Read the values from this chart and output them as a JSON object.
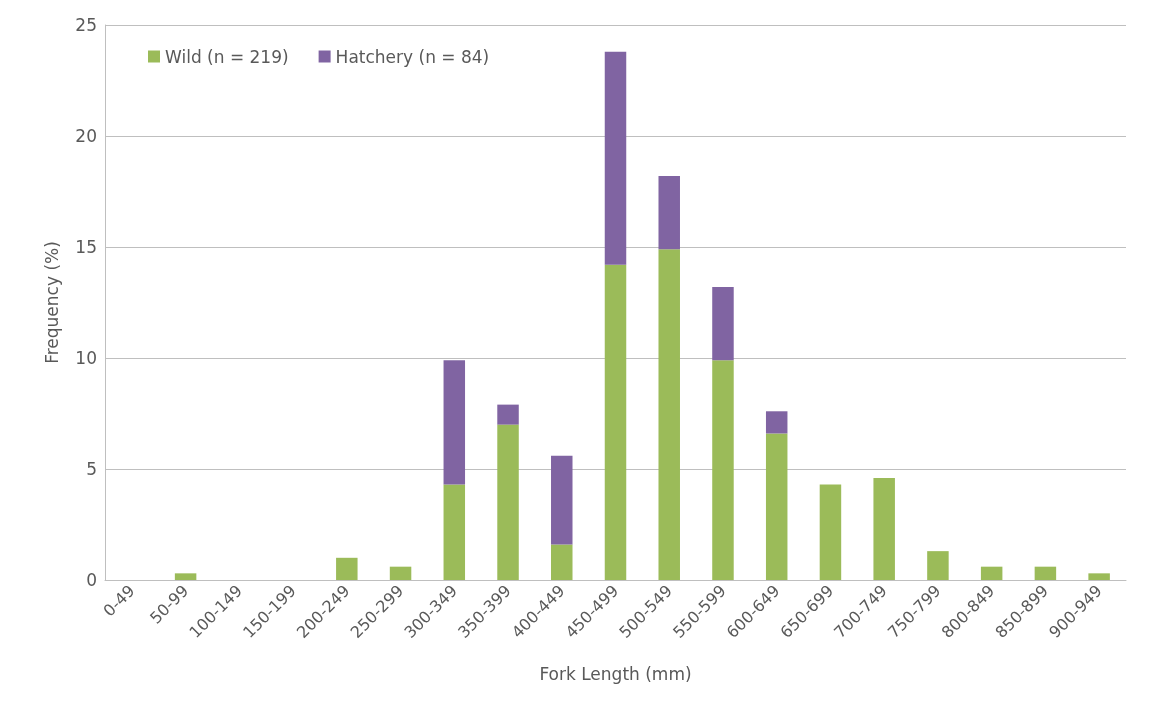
{
  "chart_data": {
    "type": "bar",
    "stacked": true,
    "xlabel": "Fork Length (mm)",
    "ylabel": "Frequency (%)",
    "categories": [
      "0-49",
      "50-99",
      "100-149",
      "150-199",
      "200-249",
      "250-299",
      "300-349",
      "350-399",
      "400-449",
      "450-499",
      "500-549",
      "550-599",
      "600-649",
      "650-699",
      "700-749",
      "750-799",
      "800-849",
      "850-899",
      "900-949"
    ],
    "series": [
      {
        "name": "Wild (n = 219)",
        "color": "#9bbb59",
        "values": [
          0,
          0.3,
          0,
          0,
          1.0,
          0.6,
          4.3,
          7.0,
          1.6,
          14.2,
          14.9,
          9.9,
          6.6,
          4.3,
          4.6,
          1.3,
          0.6,
          0.6,
          0.3
        ]
      },
      {
        "name": "Hatchery (n = 84)",
        "color": "#8064a2",
        "values": [
          0,
          0,
          0,
          0,
          0,
          0,
          5.6,
          0.9,
          4.0,
          9.6,
          3.3,
          3.3,
          1.0,
          0,
          0,
          0,
          0,
          0,
          0
        ]
      }
    ],
    "ylim": [
      0,
      25
    ],
    "yticks": [
      0,
      5,
      10,
      15,
      20,
      25
    ],
    "grid": "y",
    "legend": "top left"
  }
}
